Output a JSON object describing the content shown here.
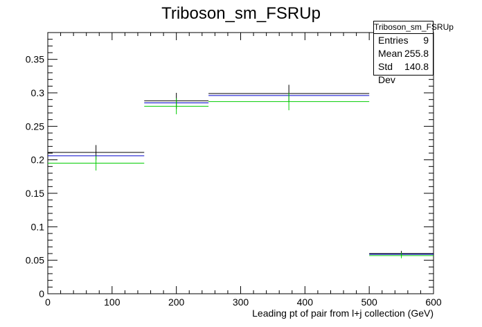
{
  "chart_data": {
    "type": "histogram",
    "title": "Triboson_sm_FSRUp",
    "xlabel": "Leading pt of pair from l+j collection (GeV)",
    "ylabel": "",
    "xlim": [
      0,
      600
    ],
    "ylim": [
      0,
      0.39
    ],
    "xticks": [
      0,
      100,
      200,
      300,
      400,
      500,
      600
    ],
    "yticks": [
      0,
      0.05,
      0.1,
      0.15,
      0.2,
      0.25,
      0.3,
      0.35
    ],
    "xtick_labels": [
      "0",
      "100",
      "200",
      "300",
      "400",
      "500",
      "600"
    ],
    "ytick_labels": [
      "0",
      "0.05",
      "0.1",
      "0.15",
      "0.2",
      "0.25",
      "0.3",
      "0.35"
    ],
    "bins": [
      {
        "x_low": 0,
        "x_high": 150,
        "center": 75
      },
      {
        "x_low": 150,
        "x_high": 250,
        "center": 200
      },
      {
        "x_low": 250,
        "x_high": 500,
        "center": 375
      },
      {
        "x_low": 500,
        "x_high": 600,
        "center": 550
      }
    ],
    "series": [
      {
        "color": "#000000",
        "values": [
          0.211,
          0.288,
          0.299,
          0.06
        ],
        "errors": [
          0.011,
          0.012,
          0.013,
          0.004
        ]
      },
      {
        "color": "#0000cc",
        "values": [
          0.206,
          0.285,
          0.296,
          0.059
        ],
        "errors": [
          0,
          0,
          0,
          0
        ]
      },
      {
        "color": "#00cc00",
        "values": [
          0.195,
          0.28,
          0.287,
          0.057
        ],
        "errors": [
          0.011,
          0.012,
          0.013,
          0.004
        ]
      }
    ],
    "stats": {
      "name": "Triboson_sm_FSRUp",
      "entries_label": "Entries",
      "entries": "9",
      "mean_label": "Mean",
      "mean": "255.8",
      "std_label": "Std Dev",
      "std": "140.8"
    }
  }
}
